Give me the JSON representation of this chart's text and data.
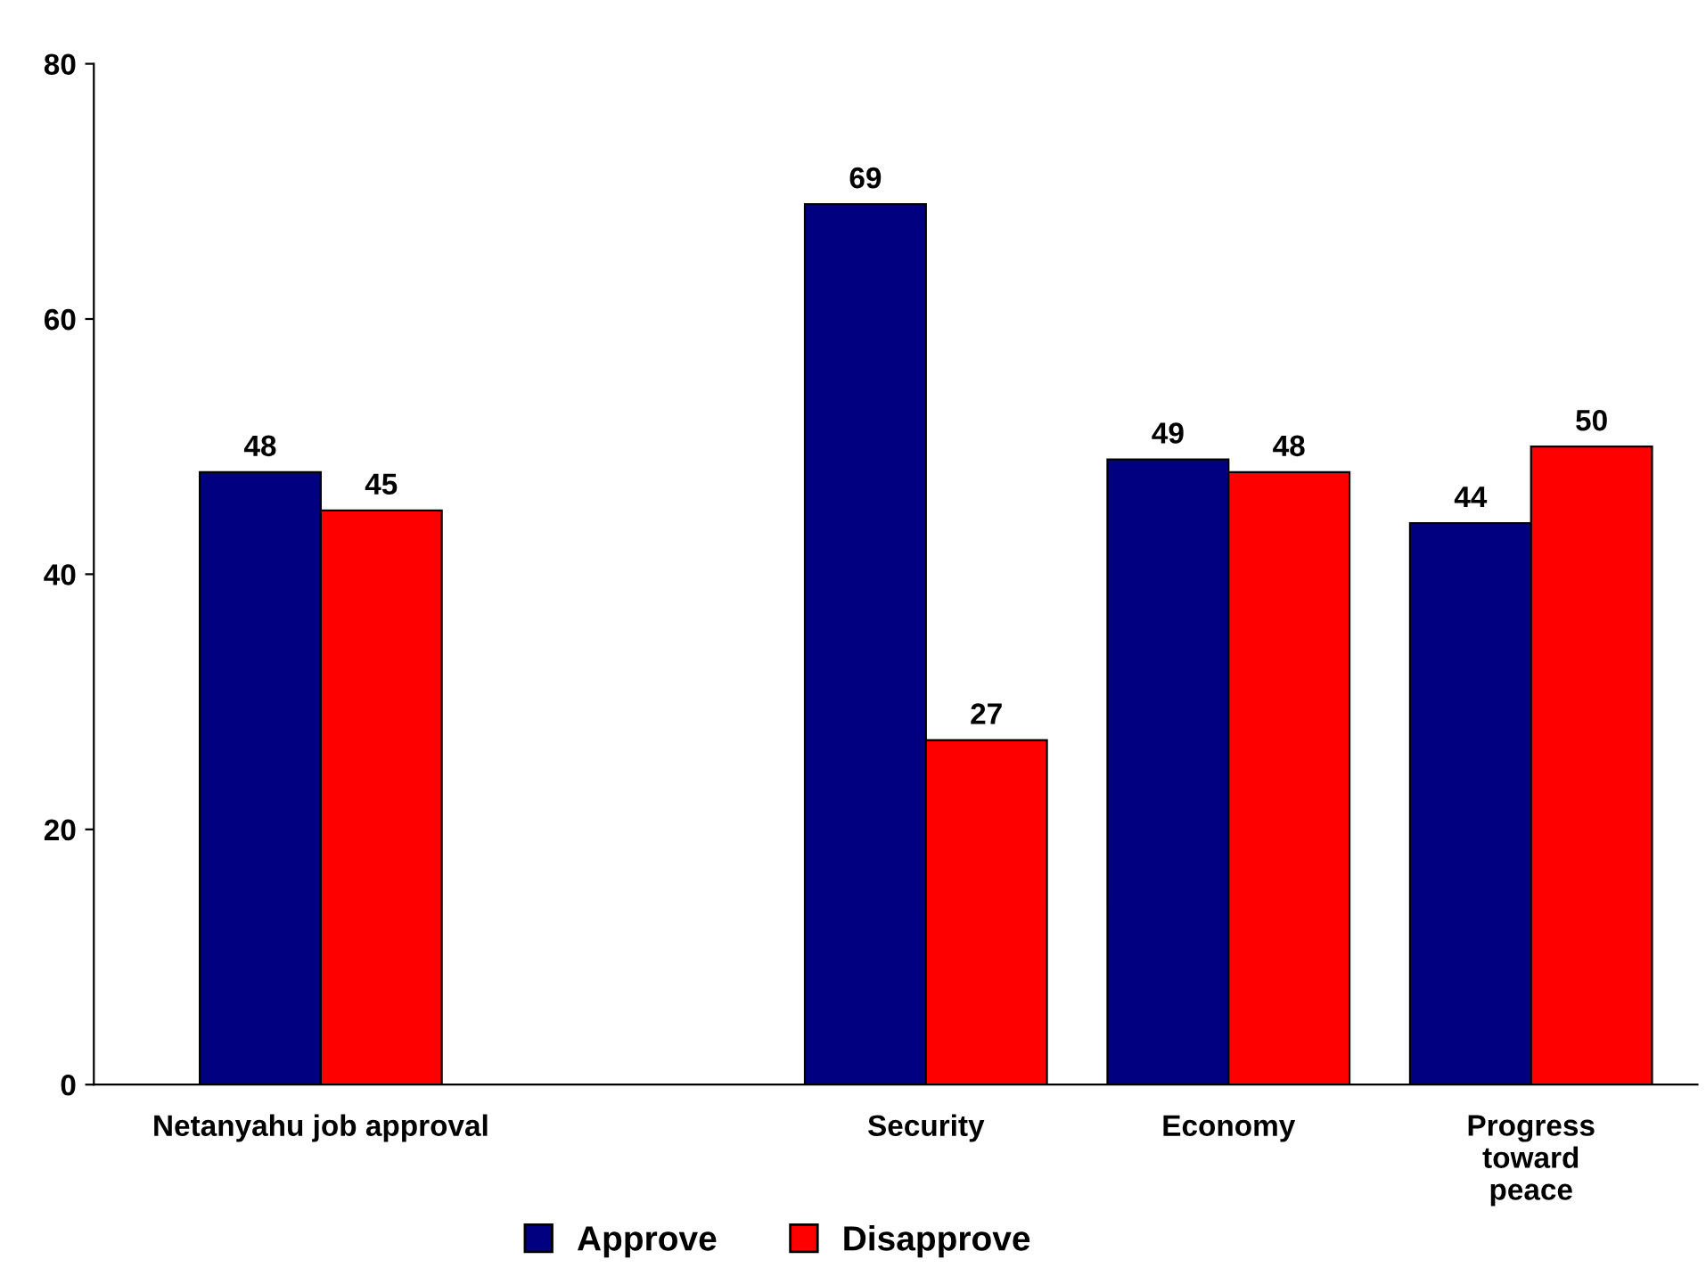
{
  "chart_data": {
    "type": "bar",
    "categories": [
      "Netanyahu job approval",
      null,
      "Security",
      "Economy",
      "Progress\ntoward\npeace"
    ],
    "series": [
      {
        "name": "Approve",
        "color": "#000080",
        "values": [
          48,
          null,
          69,
          49,
          44
        ]
      },
      {
        "name": "Disapprove",
        "color": "#ff0000",
        "values": [
          45,
          null,
          27,
          48,
          50
        ]
      }
    ],
    "ylim": [
      0,
      80
    ],
    "yticks": [
      0,
      20,
      40,
      60,
      80
    ],
    "grid": false,
    "legend": "bottom",
    "data_labels": true
  }
}
